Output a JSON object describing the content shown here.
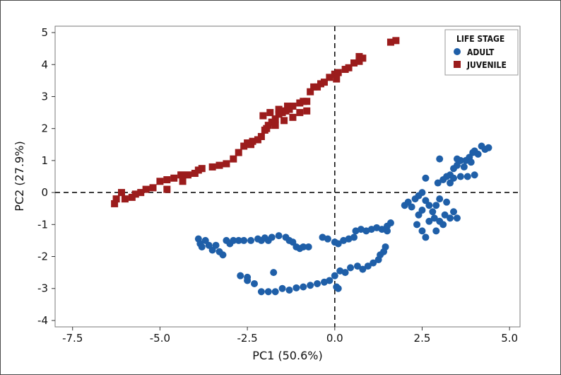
{
  "chart_data": {
    "type": "scatter",
    "title": "",
    "xlabel": "PC1 (50.6%)",
    "ylabel": "PC2 (27.9%)",
    "xlim": [
      -8.0,
      5.3
    ],
    "ylim": [
      -4.2,
      5.2
    ],
    "x_ticks": [
      -7.5,
      -5.0,
      -2.5,
      0.0,
      2.5,
      5.0
    ],
    "x_tick_labels": [
      "-7.5",
      "-5.0",
      "-2.5",
      "0.0",
      "2.5",
      "5.0"
    ],
    "y_ticks": [
      -4,
      -3,
      -2,
      -1,
      0,
      1,
      2,
      3,
      4,
      5
    ],
    "y_tick_labels": [
      "-4",
      "-3",
      "-2",
      "-1",
      "0",
      "1",
      "2",
      "3",
      "4",
      "5"
    ],
    "reference_lines": [
      {
        "axis": "x",
        "value": 0,
        "style": "dashed"
      },
      {
        "axis": "y",
        "value": 0,
        "style": "dashed"
      }
    ],
    "grid": false,
    "legend": {
      "title": "LIFE STAGE",
      "position": "top-right"
    },
    "series": [
      {
        "name": "ADULT",
        "color": "#1f5fa8",
        "marker": "circle",
        "points": [
          [
            -3.9,
            -1.45
          ],
          [
            -3.85,
            -1.6
          ],
          [
            -3.8,
            -1.7
          ],
          [
            -3.7,
            -1.5
          ],
          [
            -3.6,
            -1.65
          ],
          [
            -3.5,
            -1.8
          ],
          [
            -3.4,
            -1.65
          ],
          [
            -3.3,
            -1.85
          ],
          [
            -3.2,
            -1.95
          ],
          [
            -3.1,
            -1.5
          ],
          [
            -3.0,
            -1.6
          ],
          [
            -2.9,
            -1.5
          ],
          [
            -2.75,
            -1.5
          ],
          [
            -2.6,
            -1.5
          ],
          [
            -2.4,
            -1.5
          ],
          [
            -2.2,
            -1.45
          ],
          [
            -2.1,
            -1.5
          ],
          [
            -2.0,
            -1.42
          ],
          [
            -1.9,
            -1.5
          ],
          [
            -1.8,
            -1.4
          ],
          [
            -1.6,
            -1.35
          ],
          [
            -1.4,
            -1.4
          ],
          [
            -1.3,
            -1.5
          ],
          [
            -1.2,
            -1.55
          ],
          [
            -1.1,
            -1.7
          ],
          [
            -1.0,
            -1.75
          ],
          [
            -0.9,
            -1.7
          ],
          [
            -0.75,
            -1.7
          ],
          [
            -0.35,
            -1.4
          ],
          [
            -0.2,
            -1.45
          ],
          [
            0.0,
            -1.55
          ],
          [
            0.1,
            -1.6
          ],
          [
            0.25,
            -1.5
          ],
          [
            0.4,
            -1.45
          ],
          [
            0.55,
            -1.4
          ],
          [
            0.6,
            -1.2
          ],
          [
            0.75,
            -1.15
          ],
          [
            0.9,
            -1.2
          ],
          [
            1.05,
            -1.15
          ],
          [
            1.2,
            -1.1
          ],
          [
            1.35,
            -1.15
          ],
          [
            1.5,
            -1.05
          ],
          [
            1.6,
            -0.95
          ],
          [
            1.5,
            -1.2
          ],
          [
            1.45,
            -1.7
          ],
          [
            1.4,
            -1.85
          ],
          [
            1.3,
            -1.95
          ],
          [
            1.25,
            -2.1
          ],
          [
            1.1,
            -2.2
          ],
          [
            0.95,
            -2.3
          ],
          [
            0.8,
            -2.4
          ],
          [
            0.65,
            -2.3
          ],
          [
            0.45,
            -2.35
          ],
          [
            0.3,
            -2.5
          ],
          [
            0.15,
            -2.45
          ],
          [
            0.0,
            -2.6
          ],
          [
            -0.15,
            -2.75
          ],
          [
            -0.3,
            -2.8
          ],
          [
            -0.5,
            -2.85
          ],
          [
            -0.7,
            -2.9
          ],
          [
            -0.9,
            -2.95
          ],
          [
            -1.1,
            -2.98
          ],
          [
            -1.3,
            -3.05
          ],
          [
            -1.5,
            -3.0
          ],
          [
            -1.7,
            -3.1
          ],
          [
            -1.9,
            -3.1
          ],
          [
            -2.1,
            -3.1
          ],
          [
            -2.3,
            -2.85
          ],
          [
            -2.5,
            -2.75
          ],
          [
            -2.7,
            -2.6
          ],
          [
            -2.5,
            -2.65
          ],
          [
            -1.75,
            -2.5
          ],
          [
            0.05,
            -2.95
          ],
          [
            0.1,
            -3.0
          ],
          [
            2.0,
            -0.4
          ],
          [
            2.1,
            -0.3
          ],
          [
            2.2,
            -0.45
          ],
          [
            2.3,
            -0.2
          ],
          [
            2.4,
            -0.1
          ],
          [
            2.5,
            0.0
          ],
          [
            2.6,
            -0.25
          ],
          [
            2.7,
            -0.4
          ],
          [
            2.8,
            -0.6
          ],
          [
            2.9,
            -0.4
          ],
          [
            3.0,
            -0.2
          ],
          [
            2.5,
            -0.55
          ],
          [
            2.4,
            -0.7
          ],
          [
            2.35,
            -1.0
          ],
          [
            2.5,
            -1.2
          ],
          [
            2.7,
            -0.9
          ],
          [
            2.85,
            -0.8
          ],
          [
            3.0,
            -0.9
          ],
          [
            3.15,
            -0.7
          ],
          [
            3.3,
            -0.8
          ],
          [
            3.4,
            -0.6
          ],
          [
            3.2,
            -0.3
          ],
          [
            3.1,
            -1.0
          ],
          [
            2.6,
            -1.4
          ],
          [
            3.5,
            -0.8
          ],
          [
            2.9,
            -1.2
          ],
          [
            2.95,
            0.3
          ],
          [
            3.1,
            0.4
          ],
          [
            3.2,
            0.5
          ],
          [
            3.3,
            0.55
          ],
          [
            3.4,
            0.75
          ],
          [
            3.5,
            0.85
          ],
          [
            3.6,
            1.0
          ],
          [
            3.7,
            0.8
          ],
          [
            3.75,
            1.0
          ],
          [
            3.85,
            1.1
          ],
          [
            3.9,
            0.95
          ],
          [
            3.95,
            1.25
          ],
          [
            4.0,
            1.3
          ],
          [
            4.1,
            1.2
          ],
          [
            4.2,
            1.45
          ],
          [
            4.3,
            1.35
          ],
          [
            4.4,
            1.4
          ],
          [
            3.5,
            1.05
          ],
          [
            3.3,
            0.3
          ],
          [
            3.6,
            0.5
          ],
          [
            3.8,
            0.5
          ],
          [
            4.0,
            0.55
          ],
          [
            2.6,
            0.45
          ],
          [
            3.4,
            0.45
          ],
          [
            3.0,
            1.05
          ]
        ]
      },
      {
        "name": "JUVENILE",
        "color": "#9b1c1c",
        "marker": "square",
        "points": [
          [
            -6.3,
            -0.35
          ],
          [
            -6.25,
            -0.2
          ],
          [
            -6.1,
            0.0
          ],
          [
            -6.0,
            -0.2
          ],
          [
            -5.8,
            -0.15
          ],
          [
            -5.7,
            -0.05
          ],
          [
            -5.55,
            0.0
          ],
          [
            -5.4,
            0.1
          ],
          [
            -5.2,
            0.15
          ],
          [
            -5.0,
            0.35
          ],
          [
            -4.8,
            0.4
          ],
          [
            -4.6,
            0.45
          ],
          [
            -4.4,
            0.55
          ],
          [
            -4.2,
            0.55
          ],
          [
            -4.0,
            0.6
          ],
          [
            -3.9,
            0.7
          ],
          [
            -3.8,
            0.75
          ],
          [
            -3.3,
            0.85
          ],
          [
            -3.1,
            0.9
          ],
          [
            -2.9,
            1.05
          ],
          [
            -2.75,
            1.25
          ],
          [
            -2.6,
            1.45
          ],
          [
            -2.5,
            1.55
          ],
          [
            -2.35,
            1.6
          ],
          [
            -2.2,
            1.65
          ],
          [
            -2.1,
            1.75
          ],
          [
            -2.0,
            1.95
          ],
          [
            -1.9,
            2.1
          ],
          [
            -1.8,
            2.2
          ],
          [
            -1.7,
            2.3
          ],
          [
            -1.6,
            2.45
          ],
          [
            -1.5,
            2.5
          ],
          [
            -1.4,
            2.55
          ],
          [
            -1.3,
            2.6
          ],
          [
            -1.2,
            2.7
          ],
          [
            -1.0,
            2.8
          ],
          [
            -0.9,
            2.85
          ],
          [
            -0.8,
            2.85
          ],
          [
            -0.7,
            3.15
          ],
          [
            -0.6,
            3.3
          ],
          [
            -0.4,
            3.4
          ],
          [
            -0.3,
            3.45
          ],
          [
            -0.15,
            3.6
          ],
          [
            0.0,
            3.7
          ],
          [
            0.1,
            3.75
          ],
          [
            0.3,
            3.85
          ],
          [
            0.4,
            3.9
          ],
          [
            0.55,
            4.05
          ],
          [
            0.7,
            4.1
          ],
          [
            0.8,
            4.2
          ],
          [
            1.6,
            4.7
          ],
          [
            1.75,
            4.75
          ],
          [
            -4.8,
            0.1
          ],
          [
            -4.35,
            0.35
          ],
          [
            -3.5,
            0.8
          ],
          [
            -2.4,
            1.5
          ],
          [
            -2.05,
            2.4
          ],
          [
            -1.95,
            2.0
          ],
          [
            -1.7,
            2.1
          ],
          [
            -1.45,
            2.25
          ],
          [
            -1.2,
            2.35
          ],
          [
            -1.0,
            2.5
          ],
          [
            -0.8,
            2.55
          ],
          [
            -1.85,
            2.5
          ],
          [
            -1.6,
            2.6
          ],
          [
            -1.35,
            2.7
          ],
          [
            -0.5,
            3.3
          ],
          [
            0.05,
            3.55
          ],
          [
            0.7,
            4.25
          ]
        ]
      }
    ]
  }
}
